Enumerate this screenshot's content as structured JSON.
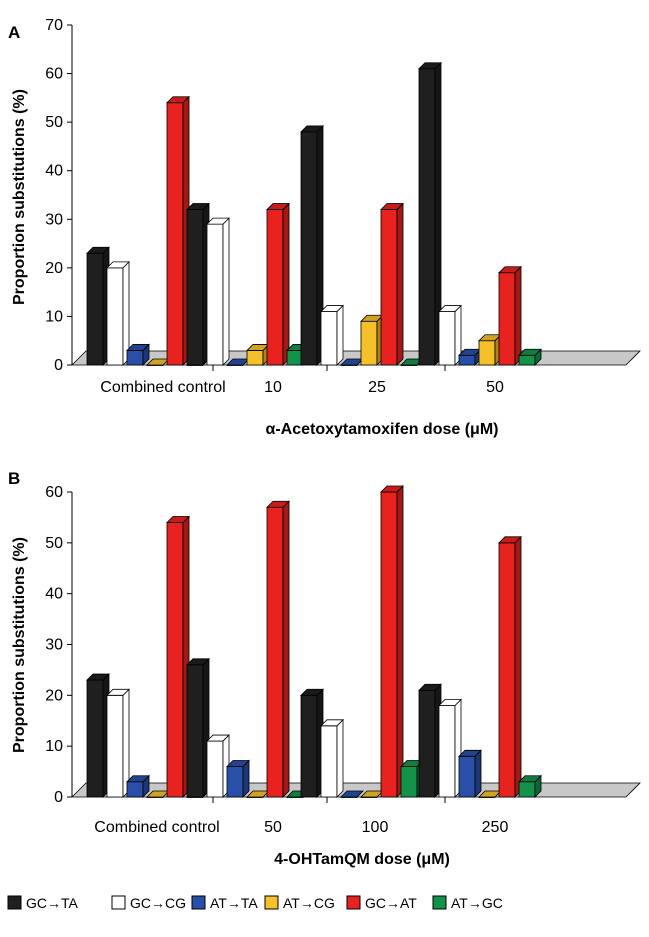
{
  "colors": {
    "GC→TA": "#1f1f1f",
    "GC→CG": "#ffffff",
    "AT→TA": "#2a4fa8",
    "AT→CG": "#f5c02a",
    "GC→AT": "#e8231f",
    "AT→GC": "#13934a"
  },
  "legend": [
    "GC→TA",
    "GC→CG",
    "AT→TA",
    "AT→CG",
    "GC→AT",
    "AT→GC"
  ],
  "chart_data": [
    {
      "panel": "A",
      "type": "bar",
      "xlabel": "α-Acetoxytamoxifen dose (μM)",
      "ylabel": "Proportion substitutions (%)",
      "ylim": [
        0,
        70
      ],
      "yticks": [
        0,
        10,
        20,
        30,
        40,
        50,
        60,
        70
      ],
      "categories": [
        "Combined control",
        "10",
        "25",
        "50"
      ],
      "series": [
        {
          "name": "GC→TA",
          "values": [
            23,
            32,
            48,
            61
          ]
        },
        {
          "name": "GC→CG",
          "values": [
            20,
            29,
            11,
            11
          ]
        },
        {
          "name": "AT→TA",
          "values": [
            3,
            0,
            0,
            2
          ]
        },
        {
          "name": "AT→CG",
          "values": [
            0,
            3,
            9,
            5
          ]
        },
        {
          "name": "GC→AT",
          "values": [
            54,
            32,
            32,
            19
          ]
        },
        {
          "name": "AT→GC",
          "values": [
            0,
            3,
            0,
            2
          ]
        }
      ]
    },
    {
      "panel": "B",
      "type": "bar",
      "xlabel": "4-OHTamQM dose (μM)",
      "ylabel": "Proportion substitutions (%)",
      "ylim": [
        0,
        60
      ],
      "yticks": [
        0,
        10,
        20,
        30,
        40,
        50,
        60
      ],
      "categories": [
        "Combined control",
        "50",
        "100",
        "250"
      ],
      "series": [
        {
          "name": "GC→TA",
          "values": [
            23,
            26,
            20,
            21
          ]
        },
        {
          "name": "GC→CG",
          "values": [
            20,
            11,
            14,
            18
          ]
        },
        {
          "name": "AT→TA",
          "values": [
            3,
            6,
            0,
            8
          ]
        },
        {
          "name": "AT→CG",
          "values": [
            0,
            0,
            0,
            0
          ]
        },
        {
          "name": "GC→AT",
          "values": [
            54,
            57,
            60,
            50
          ]
        },
        {
          "name": "AT→GC",
          "values": [
            0,
            0,
            6,
            3
          ]
        }
      ]
    }
  ]
}
